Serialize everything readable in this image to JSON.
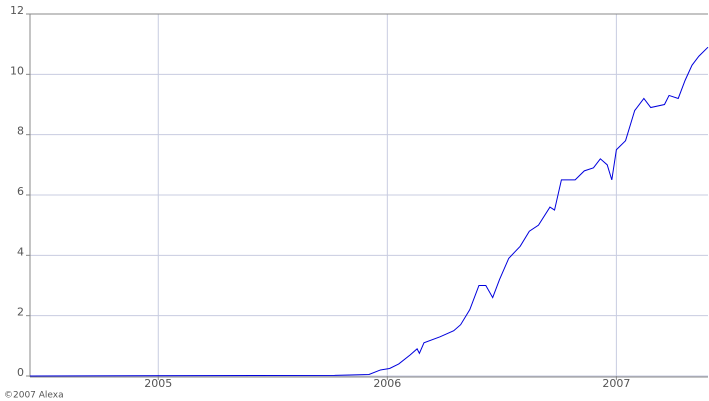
{
  "chart_data": {
    "type": "line",
    "x": [
      2004.44,
      2005.77,
      2005.92,
      2005.97,
      2006.01,
      2006.05,
      2006.1,
      2006.13,
      2006.14,
      2006.16,
      2006.23,
      2006.29,
      2006.32,
      2006.36,
      2006.4,
      2006.43,
      2006.46,
      2006.49,
      2006.53,
      2006.58,
      2006.62,
      2006.66,
      2006.71,
      2006.73,
      2006.76,
      2006.82,
      2006.86,
      2006.9,
      2006.93,
      2006.96,
      2006.98,
      2007.0,
      2007.04,
      2007.08,
      2007.12,
      2007.15,
      2007.21,
      2007.23,
      2007.27,
      2007.3,
      2007.33,
      2007.36,
      2007.4
    ],
    "series": [
      {
        "color": "#0000dd",
        "values": [
          0,
          0.02,
          0.05,
          0.2,
          0.25,
          0.4,
          0.7,
          0.9,
          0.75,
          1.1,
          1.3,
          1.5,
          1.7,
          2.2,
          3.0,
          3.0,
          2.6,
          3.2,
          3.9,
          4.3,
          4.8,
          5.0,
          5.6,
          5.5,
          6.5,
          6.5,
          6.8,
          6.9,
          7.2,
          7.0,
          6.5,
          7.5,
          7.8,
          8.8,
          9.2,
          8.9,
          9.0,
          9.3,
          9.2,
          9.8,
          10.3,
          10.6,
          10.9
        ]
      }
    ],
    "xlim": [
      2004.44,
      2007.4
    ],
    "xticks": [
      2005,
      2006,
      2007
    ],
    "ylim": [
      0,
      12
    ],
    "yticks": [
      0,
      2,
      4,
      6,
      8,
      10,
      12
    ],
    "grid": true,
    "footnote": "©2007 Alexa"
  }
}
